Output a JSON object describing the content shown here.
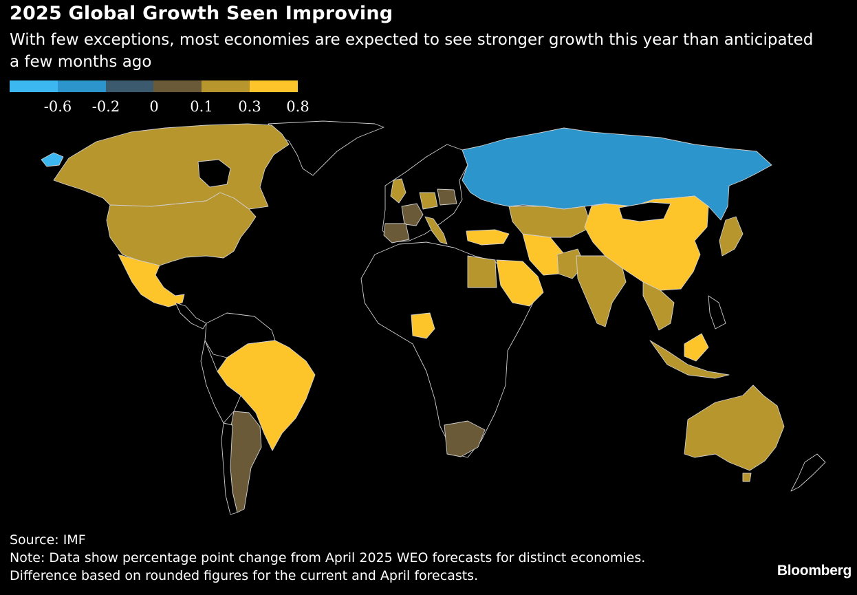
{
  "title": "2025 Global Growth Seen Improving",
  "subtitle": "With few exceptions, most economies are expected to see stronger growth this year than anticipated a few months ago",
  "legend": {
    "colors": [
      "#3cb7ef",
      "#2b95cc",
      "#3c5a6d",
      "#6b5a37",
      "#b8962e",
      "#fec52a"
    ],
    "ticks": [
      "-0.6",
      "-0.2",
      "0",
      "0.1",
      "0.3",
      "0.8"
    ]
  },
  "map": {
    "colors": {
      "no_data": "#000000",
      "russia": "#2b95cc",
      "greenland": "#3cb7ef",
      "flat": "#6b5a37",
      "mid": "#b8962e",
      "high": "#fec52a"
    },
    "regions": [
      {
        "name": "Canada",
        "category": "mid"
      },
      {
        "name": "United States",
        "category": "mid"
      },
      {
        "name": "Mexico",
        "category": "high"
      },
      {
        "name": "Brazil",
        "category": "high"
      },
      {
        "name": "Argentina",
        "category": "flat"
      },
      {
        "name": "Russia",
        "category": "russia"
      },
      {
        "name": "China",
        "category": "high"
      },
      {
        "name": "India",
        "category": "mid"
      },
      {
        "name": "Saudi Arabia",
        "category": "high"
      },
      {
        "name": "Nigeria",
        "category": "high"
      },
      {
        "name": "South Africa",
        "category": "flat"
      },
      {
        "name": "Australia",
        "category": "mid"
      },
      {
        "name": "Japan",
        "category": "mid"
      }
    ]
  },
  "source": "Source: IMF",
  "note": "Note: Data show percentage point change from April 2025 WEO forecasts for distinct economies. Difference based on rounded figures for the current and April forecasts.",
  "brand": "Bloomberg"
}
